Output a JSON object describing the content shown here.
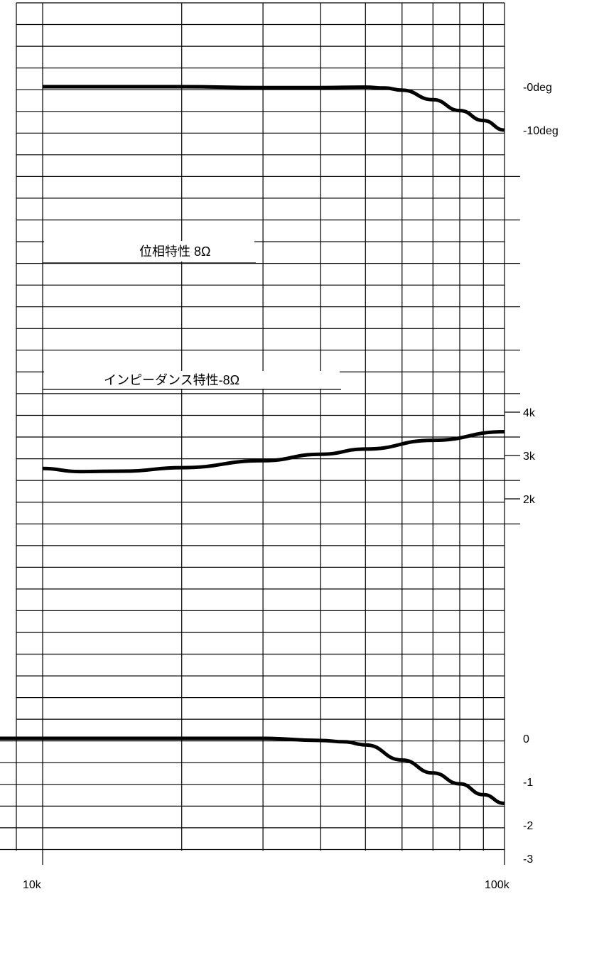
{
  "colors": {
    "background": "#ffffff",
    "grid": "#000000",
    "curve": "#000000"
  },
  "chart_data": {
    "type": "line",
    "title": "",
    "x_scale": "log",
    "x_range": [
      10000,
      100000
    ],
    "x_ticks": [
      "10k",
      "100k"
    ],
    "grid": true,
    "annotations": [
      {
        "id": "phase",
        "text": "位相特性 8Ω"
      },
      {
        "id": "impedance",
        "text": "インピーダンス特性-8Ω"
      }
    ],
    "axes": {
      "phase": {
        "ticks": [
          "-0deg",
          "-10deg"
        ],
        "range_deg": [
          -20,
          0
        ]
      },
      "impedance": {
        "ticks": [
          "4k",
          "3k",
          "2k"
        ],
        "range_ohm": [
          1000,
          5000
        ]
      },
      "response": {
        "ticks": [
          "0",
          "-1",
          "-2",
          "-3"
        ],
        "range_db": [
          -3,
          0
        ]
      }
    },
    "series": [
      {
        "axis": "phase",
        "x": [
          10000,
          20000,
          30000,
          40000,
          50000,
          55000,
          60000,
          70000,
          80000,
          90000,
          100000
        ],
        "y": [
          0,
          0,
          -0.2,
          -0.2,
          -0.1,
          -0.3,
          -0.8,
          -3,
          -5.5,
          -7.8,
          -10
        ]
      },
      {
        "axis": "impedance",
        "x": [
          10000,
          12000,
          15000,
          20000,
          30000,
          40000,
          50000,
          70000,
          100000
        ],
        "y": [
          2700,
          2630,
          2640,
          2720,
          2880,
          3030,
          3150,
          3350,
          3550
        ]
      },
      {
        "axis": "response",
        "x": [
          10000,
          20000,
          30000,
          40000,
          45000,
          50000,
          60000,
          70000,
          80000,
          90000,
          100000
        ],
        "y": [
          0,
          0,
          0,
          -0.05,
          -0.08,
          -0.15,
          -0.5,
          -0.8,
          -1.05,
          -1.3,
          -1.5
        ]
      }
    ]
  }
}
